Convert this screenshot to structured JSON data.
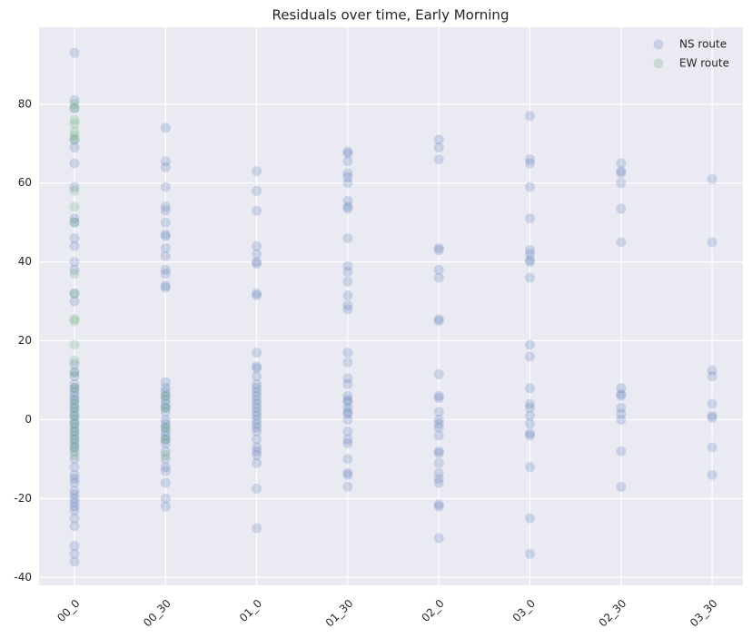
{
  "chart_data": {
    "type": "scatter",
    "title": "Residuals over time, Early Morning",
    "categories": [
      "00_0",
      "00_30",
      "01_0",
      "01_30",
      "02_0",
      "03_0",
      "02_30",
      "03_30"
    ],
    "ylim": [
      -42,
      99.5
    ],
    "yticks": [
      -40,
      -20,
      0,
      20,
      40,
      60,
      80
    ],
    "grid": true,
    "legend": "upper right",
    "series": [
      {
        "name": "NS route",
        "color": "#4c72b0",
        "values": [
          [
            93,
            81,
            79,
            71,
            69,
            65,
            59,
            51,
            50,
            46,
            44,
            40,
            38,
            32,
            30,
            14,
            12,
            11,
            9,
            8,
            7,
            6,
            5,
            4,
            3,
            2,
            1,
            0,
            -1,
            -2,
            -3,
            -4,
            -5,
            -6,
            -7,
            -8,
            -10,
            -12,
            -14,
            -15,
            -16,
            -18,
            -19,
            -20,
            -21,
            -22,
            -23,
            -25,
            -27,
            -32,
            -34,
            -36
          ],
          [
            74,
            65.5,
            64,
            59,
            54,
            53,
            50,
            47,
            46.5,
            43.5,
            41.5,
            38,
            37,
            34,
            33.5,
            9.5,
            8,
            7,
            6,
            5,
            4,
            3,
            2,
            0,
            -1,
            -2,
            -3,
            -4,
            -5,
            -6,
            -8,
            -10,
            -12,
            -13,
            -16,
            -20,
            -22
          ],
          [
            63,
            58,
            53,
            44,
            42,
            40,
            39.5,
            32,
            31.5,
            17,
            13.5,
            13,
            11,
            9,
            8,
            7,
            6,
            5,
            4,
            3,
            2,
            1,
            0,
            -1,
            -2,
            -3,
            -5,
            -7,
            -8,
            -9,
            -11,
            -17.5,
            -27.5
          ],
          [
            68,
            67.5,
            65.5,
            62.5,
            61.5,
            60,
            55.5,
            54,
            53.5,
            46,
            39,
            37.5,
            35,
            31.5,
            29,
            28,
            17,
            14.5,
            10.5,
            9,
            6,
            5,
            4.5,
            3,
            2,
            1.5,
            0,
            -3,
            -5,
            -6,
            -10,
            -13.5,
            -14,
            -17
          ],
          [
            71,
            69,
            66,
            43.5,
            43,
            38,
            36,
            25.5,
            25,
            11.5,
            6,
            5.5,
            2,
            0,
            -1,
            -2,
            -4,
            -8,
            -8.5,
            -11,
            -13.5,
            -15,
            -16,
            -21.5,
            -22,
            -30
          ],
          [
            77,
            66,
            65,
            59,
            51,
            43,
            42,
            40.5,
            40,
            36,
            19,
            16,
            8,
            4,
            3,
            1,
            -1,
            -3.5,
            -4,
            -12,
            -25,
            -34
          ],
          [
            65,
            63,
            62.5,
            60,
            53.5,
            45,
            8,
            6.5,
            6,
            3,
            1.5,
            0,
            -8,
            -17
          ],
          [
            61,
            45,
            12.5,
            11,
            4,
            1,
            0.5,
            -7,
            -14
          ]
        ]
      },
      {
        "name": "EW route",
        "color": "#55a868",
        "values": [
          [
            80,
            79,
            76,
            75,
            73,
            72,
            71,
            58,
            54,
            50,
            37,
            32,
            25.5,
            25,
            19,
            15,
            12,
            8,
            5,
            3,
            1,
            -1,
            -3,
            -5,
            -7,
            -9
          ],
          [
            6,
            3,
            -2,
            -5,
            -9
          ],
          [],
          [],
          [],
          [],
          [],
          []
        ]
      }
    ]
  }
}
